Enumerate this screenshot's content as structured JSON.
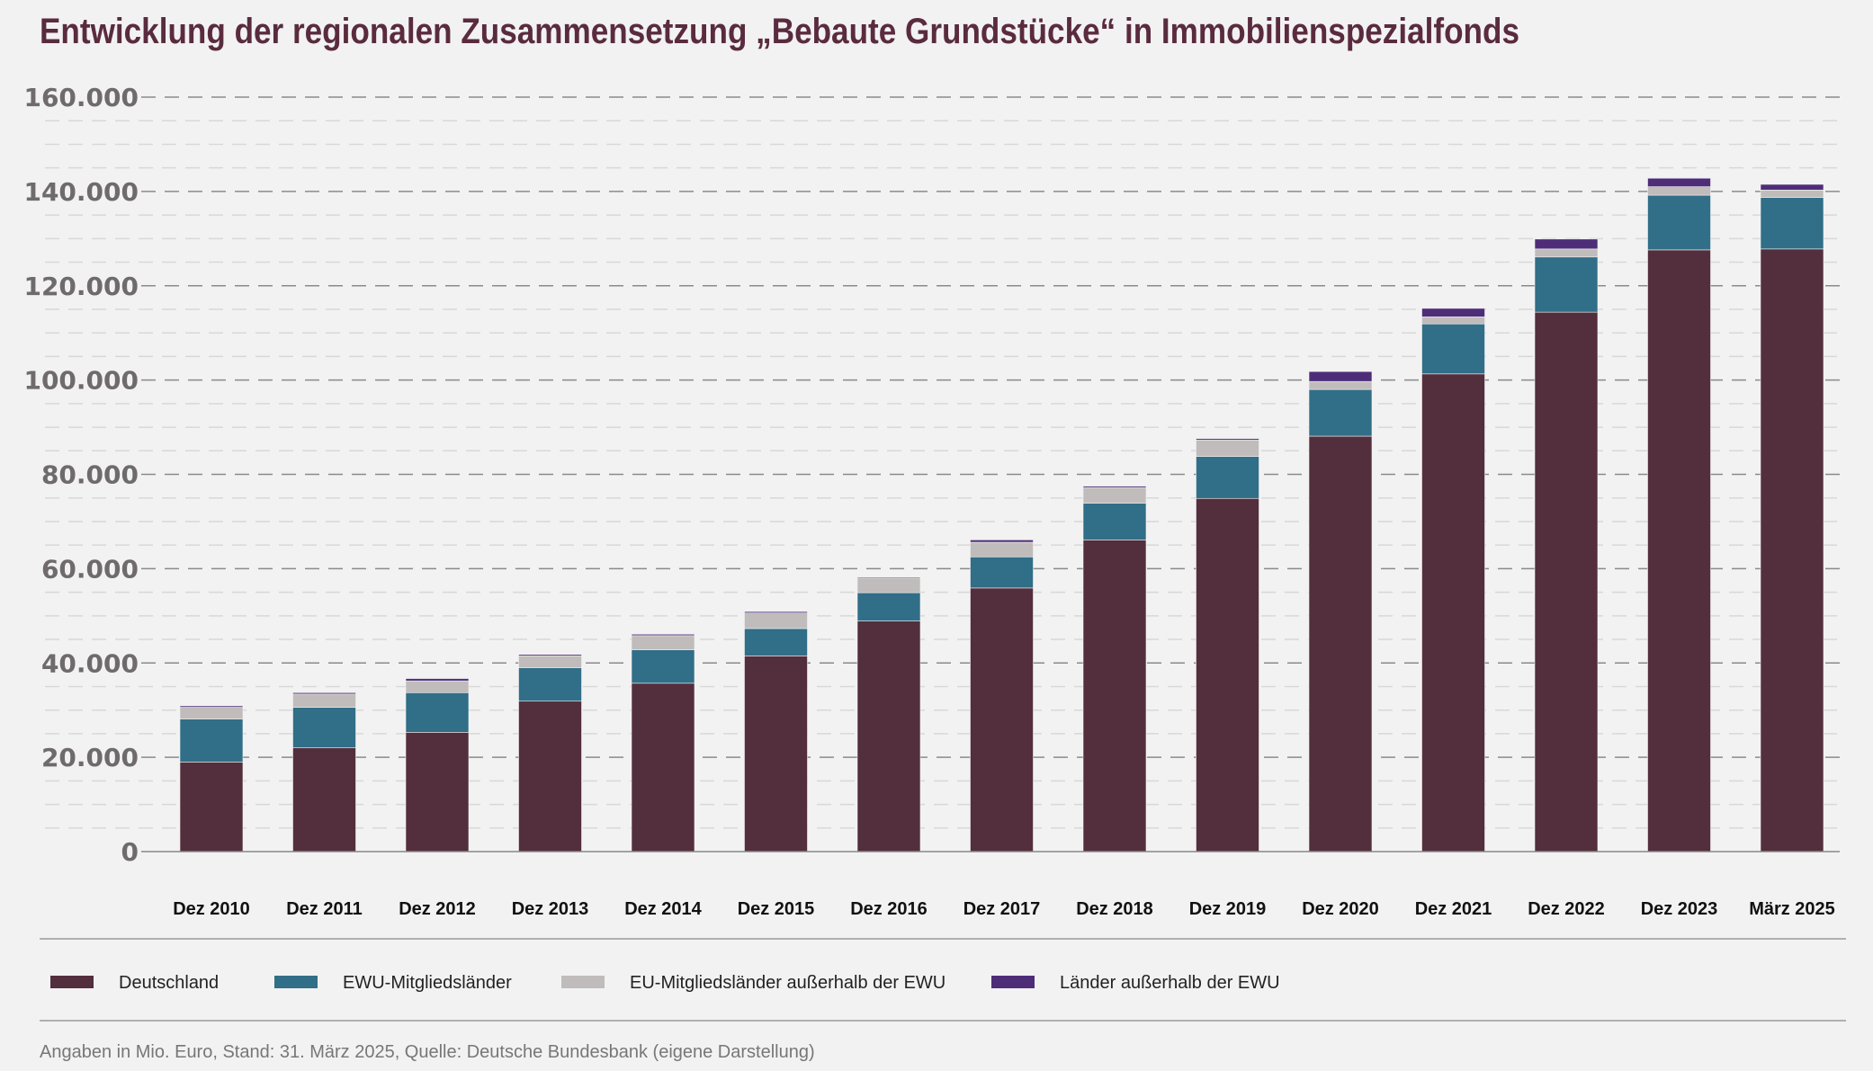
{
  "chart_data": {
    "type": "bar",
    "stacked": true,
    "title": "Entwicklung der regionalen Zusammensetzung „Bebaute Grundstücke“ in Immobilienspezialfonds",
    "footnote": "Angaben in Mio. Euro, Stand: 31. März 2025, Quelle: Deutsche Bundesbank (eigene Darstellung)",
    "categories": [
      "Dez 2010",
      "Dez 2011",
      "Dez 2012",
      "Dez 2013",
      "Dez 2014",
      "Dez 2015",
      "Dez 2016",
      "Dez 2017",
      "Dez 2018",
      "Dez 2019",
      "Dez 2020",
      "Dez 2021",
      "Dez 2022",
      "Dez 2023",
      "März 2025"
    ],
    "ylim": [
      0,
      160000
    ],
    "yticks": [
      0,
      20000,
      40000,
      60000,
      80000,
      100000,
      120000,
      140000,
      160000
    ],
    "ytick_labels": [
      "0",
      "20.000",
      "40.000",
      "60.000",
      "80.000",
      "100.000",
      "120.000",
      "140.000",
      "160.000"
    ],
    "grid": true,
    "legend_position": "bottom",
    "series": [
      {
        "name": "Deutschland",
        "color": "#532e3c",
        "values": [
          19000,
          22000,
          25300,
          31900,
          35700,
          41500,
          48900,
          55900,
          66100,
          74900,
          88100,
          101300,
          114400,
          127600,
          127800
        ]
      },
      {
        "name": "EWU-Mitgliedsländer",
        "color": "#316e87",
        "values": [
          9100,
          8600,
          8400,
          7100,
          7100,
          5800,
          6000,
          6600,
          7800,
          8900,
          9900,
          10600,
          11700,
          11600,
          10900
        ]
      },
      {
        "name": "EU-Mitgliedsländer außerhalb der EWU",
        "color": "#c0bcbb",
        "values": [
          2500,
          2800,
          2500,
          2500,
          3000,
          3300,
          3100,
          3100,
          3300,
          3500,
          1700,
          1500,
          1700,
          1800,
          1600
        ]
      },
      {
        "name": "Länder außerhalb der EWU",
        "color": "#4e2d78",
        "values": [
          300,
          300,
          500,
          300,
          300,
          300,
          200,
          500,
          300,
          300,
          2100,
          1800,
          2100,
          1800,
          1200
        ]
      }
    ]
  }
}
